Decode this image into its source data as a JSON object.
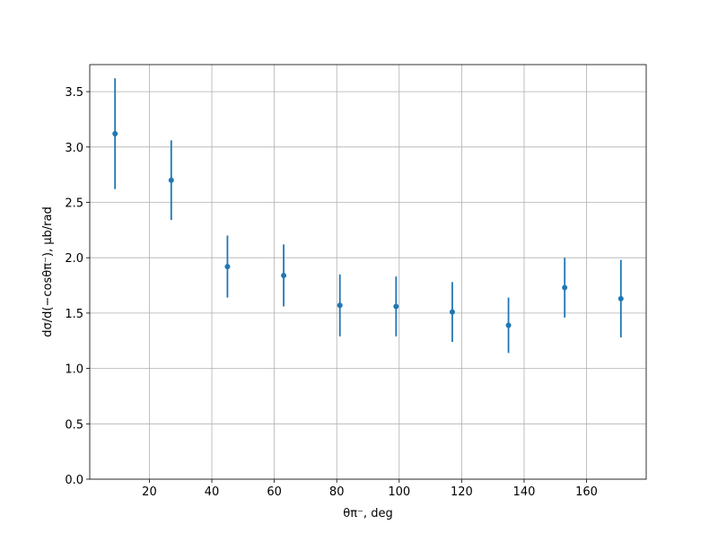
{
  "chart_data": {
    "type": "errorbar",
    "xlabel": "θπ⁻, deg",
    "ylabel": "dσ/d(−cosθπ⁻), μb/rad",
    "x": [
      9,
      27,
      45,
      63,
      81,
      99,
      117,
      135,
      153,
      171
    ],
    "values": [
      3.12,
      2.7,
      1.92,
      1.84,
      1.57,
      1.56,
      1.51,
      1.39,
      1.73,
      1.63
    ],
    "errors": [
      0.5,
      0.36,
      0.28,
      0.28,
      0.28,
      0.27,
      0.27,
      0.25,
      0.27,
      0.35
    ],
    "color": "#1f77b4",
    "xlim": [
      0.9,
      179.1
    ],
    "ylim": [
      0,
      3.744
    ],
    "xticks": [
      20,
      40,
      60,
      80,
      100,
      120,
      140,
      160
    ],
    "yticks": [
      {
        "value": 0,
        "label": "0.0"
      },
      {
        "value": 0.5,
        "label": "0.5"
      },
      {
        "value": 1,
        "label": "1.0"
      },
      {
        "value": 1.5,
        "label": "1.5"
      },
      {
        "value": 2,
        "label": "2.0"
      },
      {
        "value": 2.5,
        "label": "2.5"
      },
      {
        "value": 3,
        "label": "3.0"
      },
      {
        "value": 3.5,
        "label": "3.5"
      }
    ],
    "grid": true
  }
}
